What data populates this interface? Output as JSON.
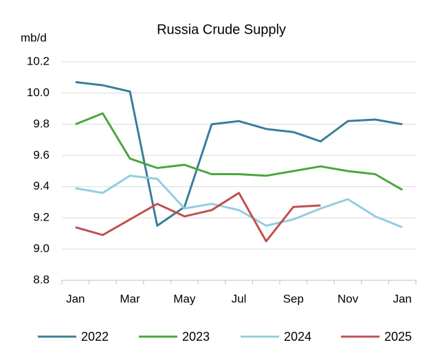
{
  "chart_data": {
    "type": "line",
    "title": "Russia Crude Supply",
    "y_label": "mb/d",
    "categories": [
      "Jan",
      null,
      "Mar",
      null,
      "May",
      null,
      "Jul",
      null,
      "Sep",
      null,
      "Nov",
      null,
      "Jan"
    ],
    "series": [
      {
        "name": "2022",
        "color": "#3a7d98",
        "values": [
          10.07,
          10.05,
          10.01,
          9.15,
          9.27,
          9.8,
          9.82,
          9.77,
          9.75,
          9.69,
          9.82,
          9.83,
          9.8
        ]
      },
      {
        "name": "2023",
        "color": "#4aa63c",
        "values": [
          9.8,
          9.87,
          9.58,
          9.52,
          9.54,
          9.48,
          9.48,
          9.47,
          9.5,
          9.53,
          9.5,
          9.48,
          9.38
        ]
      },
      {
        "name": "2024",
        "color": "#92cde0",
        "values": [
          9.39,
          9.36,
          9.47,
          9.45,
          9.26,
          9.29,
          9.25,
          9.15,
          9.19,
          9.26,
          9.32,
          9.21,
          9.14
        ]
      },
      {
        "name": "2025",
        "color": "#c0504d",
        "values": [
          9.14,
          9.09,
          9.19,
          9.29,
          9.21,
          9.25,
          9.36,
          9.05,
          9.27,
          9.28,
          null,
          null,
          null
        ]
      }
    ],
    "ylim": [
      8.8,
      10.2
    ],
    "yticks": [
      8.8,
      {
        "value": 9,
        "label": "9.0"
      },
      9.2,
      9.4,
      9.6,
      9.8,
      {
        "value": 10,
        "label": "10.0"
      },
      10.2
    ],
    "grid": true,
    "legend": "bottom"
  }
}
